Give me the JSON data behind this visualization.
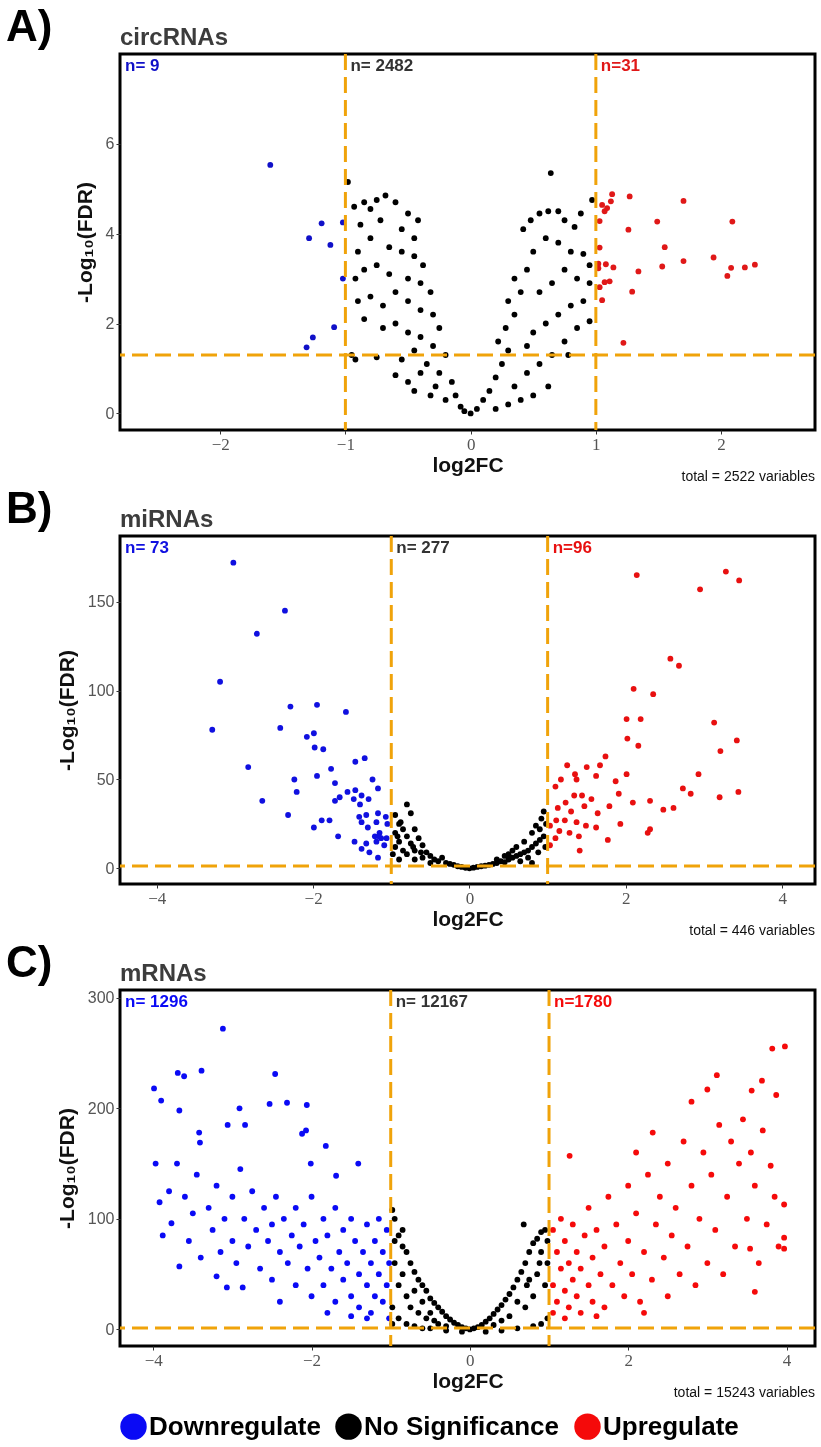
{
  "chart_data": [
    {
      "type": "scatter",
      "title": "circRNAs",
      "xlabel": "log2FC",
      "ylabel": "-Log₁₀(FDR)",
      "xlim": [
        -2.8,
        2.75
      ],
      "ylim": [
        -0.37,
        8
      ],
      "xticks": [
        -2,
        -1,
        0,
        1,
        2
      ],
      "yticks": [
        0,
        2,
        4,
        6
      ],
      "marker": "circle",
      "legend": false,
      "annotations": [
        "A)",
        "n= 9",
        "n= 2482",
        "n=31",
        "total = 2522 variables"
      ],
      "ref_lines": [
        {
          "axis": "x",
          "value": -1,
          "color": "#f0a30a",
          "line_style": "dashed"
        },
        {
          "axis": "x",
          "value": 1,
          "color": "#f0a30a",
          "line_style": "dashed"
        },
        {
          "axis": "y",
          "value": 1.3,
          "color": "#f0a30a",
          "line_style": "dashed"
        }
      ],
      "series": [
        {
          "color": "#1010c8",
          "x": [
            -1.6,
            -1.19,
            -1.02,
            -1.29,
            -1.12,
            -1.02,
            -1.09,
            -1.26,
            -1.31
          ],
          "values": [
            5.53,
            4.23,
            4.25,
            3.9,
            3.75,
            3.0,
            1.92,
            1.69,
            1.47
          ]
        },
        {
          "color": "#000000",
          "x": [
            -0.98,
            -0.93,
            -0.85,
            -0.8,
            -0.75,
            -0.68,
            -0.6,
            -0.5,
            -0.42,
            -0.88,
            -0.72,
            -0.55,
            -0.45,
            -0.9,
            -0.8,
            -0.65,
            -0.55,
            -0.45,
            -0.38,
            -0.92,
            -0.85,
            -0.75,
            -0.65,
            -0.5,
            -0.4,
            -0.32,
            -0.9,
            -0.8,
            -0.7,
            -0.6,
            -0.5,
            -0.4,
            -0.3,
            -0.25,
            -0.85,
            -0.7,
            -0.6,
            -0.5,
            -0.4,
            -0.3,
            -0.2,
            -0.95,
            -0.92,
            -0.75,
            -0.55,
            -0.45,
            -0.35,
            -0.25,
            -0.15,
            -0.6,
            -0.5,
            -0.45,
            -0.4,
            -0.32,
            -0.28,
            -0.2,
            -0.12,
            -0.08,
            -0.05,
            0,
            0.05,
            0.1,
            0.15,
            0.2,
            0.25,
            0.3,
            0.22,
            0.28,
            0.35,
            0.3,
            0.4,
            0.35,
            0.45,
            0.5,
            0.42,
            0.48,
            0.55,
            0.62,
            0.7,
            0.75,
            0.83,
            0.88,
            0.64,
            0.97,
            0.6,
            0.7,
            0.8,
            0.9,
            0.95,
            0.85,
            0.75,
            0.65,
            0.55,
            0.95,
            0.9,
            0.8,
            0.7,
            0.6,
            0.5,
            0.45,
            0.95,
            0.85,
            0.75,
            0.65,
            0.55,
            0.45,
            0.35,
            0.62,
            0.5,
            0.4,
            0.3,
            0.2,
            0.78
          ],
          "values": [
            5.15,
            4.6,
            4.7,
            4.55,
            4.75,
            4.85,
            4.7,
            4.45,
            4.3,
            4.2,
            4.3,
            4.1,
            3.9,
            3.6,
            3.9,
            3.7,
            3.6,
            3.5,
            3.3,
            3.0,
            3.2,
            3.3,
            3.1,
            3.0,
            2.9,
            2.7,
            2.5,
            2.6,
            2.4,
            2.7,
            2.5,
            2.3,
            2.2,
            1.9,
            2.1,
            1.9,
            2.0,
            1.8,
            1.7,
            1.5,
            1.3,
            1.3,
            1.2,
            1.25,
            1.2,
            1.4,
            1.1,
            0.9,
            0.7,
            0.85,
            0.7,
            0.5,
            0.9,
            0.4,
            0.6,
            0.3,
            0.4,
            0.15,
            0.05,
            0,
            0.1,
            0.3,
            0.5,
            0.8,
            1.1,
            1.4,
            1.6,
            1.9,
            2.2,
            2.5,
            2.7,
            3.0,
            3.2,
            3.6,
            4.1,
            4.3,
            4.45,
            4.5,
            4.5,
            4.3,
            4.15,
            4.45,
            5.35,
            4.75,
            3.9,
            3.8,
            3.6,
            3.55,
            3.3,
            3.0,
            3.2,
            2.9,
            2.7,
            2.9,
            2.5,
            2.4,
            2.2,
            2.0,
            1.8,
            1.5,
            2.05,
            1.9,
            1.6,
            1.3,
            1.1,
            0.9,
            0.6,
            0.6,
            0.4,
            0.3,
            0.2,
            0.1,
            1.3
          ]
        },
        {
          "color": "#e01818",
          "x": [
            1.05,
            1.13,
            1.27,
            1.12,
            1.07,
            1.03,
            1.26,
            1.49,
            1.7,
            2.09,
            1.55,
            1.03,
            1.7,
            1.94,
            1.53,
            1.08,
            1.02,
            1.14,
            1.34,
            2.08,
            2.19,
            2.27,
            2.05,
            1.07,
            1.03,
            1.29,
            1.05,
            1.22,
            1.09,
            1.11,
            1.02
          ],
          "values": [
            4.64,
            4.88,
            4.83,
            4.72,
            4.5,
            4.28,
            4.09,
            4.27,
            4.73,
            4.27,
            3.7,
            3.69,
            3.39,
            3.47,
            3.27,
            3.32,
            3.23,
            3.25,
            3.16,
            3.24,
            3.25,
            3.31,
            3.06,
            2.92,
            2.81,
            2.71,
            2.52,
            1.57,
            4.57,
            2.94,
            3.33
          ]
        }
      ]
    },
    {
      "type": "scatter",
      "title": "miRNAs",
      "xlabel": "log2FC",
      "ylabel": "-Log₁₀(FDR)",
      "xlim": [
        -4.47,
        4.42
      ],
      "ylim": [
        -8.8,
        187
      ],
      "xticks": [
        -4,
        -2,
        0,
        2,
        4
      ],
      "yticks": [
        0,
        50,
        100,
        150
      ],
      "marker": "circle",
      "legend": false,
      "annotations": [
        "B)",
        "n= 73",
        "n= 277",
        "n=96",
        "total = 446 variables"
      ],
      "ref_lines": [
        {
          "axis": "x",
          "value": -1,
          "color": "#f0a30a",
          "line_style": "dashed"
        },
        {
          "axis": "x",
          "value": 1,
          "color": "#f0a30a",
          "line_style": "dashed"
        },
        {
          "axis": "y",
          "value": 1.3,
          "color": "#f0a30a",
          "line_style": "dashed"
        }
      ],
      "series": [
        {
          "color": "#1010e0",
          "x": [
            -3.02,
            -2.36,
            -2.72,
            -3.19,
            -3.29,
            -2.29,
            -1.95,
            -1.58,
            -2.42,
            -2.08,
            -1.99,
            -1.98,
            -1.87,
            -2.83,
            -1.77,
            -1.72,
            -2.24,
            -1.95,
            -2.21,
            -2.65,
            -2.32,
            -1.99,
            -1.89,
            -1.68,
            -1.79,
            -1.46,
            -1.34,
            -1.24,
            -1.17,
            -1.56,
            -1.46,
            -1.38,
            -1.48,
            -1.66,
            -1.72,
            -1.4,
            -1.29,
            -1.41,
            -1.32,
            -1.17,
            -1.07,
            -1.19,
            -1.3,
            -1.38,
            -1.05,
            -1.15,
            -1.21,
            -1.13,
            -1.19,
            -1.32,
            -1.47,
            -1.38,
            -1.28,
            -1.17,
            -1.09,
            -1.06,
            -1.16
          ],
          "values": [
            172,
            145,
            132,
            105,
            78,
            91,
            92,
            88,
            79,
            74,
            76,
            68,
            67,
            57,
            56,
            48,
            50,
            52,
            43,
            38,
            30,
            23,
            27,
            18,
            27,
            60,
            62,
            50,
            45,
            43,
            44,
            41,
            39,
            40,
            38,
            36,
            39,
            29,
            30,
            31,
            29,
            26,
            23,
            26,
            25,
            20,
            18,
            17,
            15,
            14,
            15,
            11,
            9,
            6,
            13,
            17,
            18
          ]
        },
        {
          "color": "#000000",
          "x": [
            -0.8,
            -0.75,
            -0.95,
            -0.9,
            -0.85,
            -0.7,
            -0.95,
            -0.8,
            -0.65,
            -0.9,
            -0.75,
            -0.6,
            -0.95,
            -0.85,
            -0.7,
            -0.55,
            -0.9,
            -0.5,
            -0.45,
            -0.6,
            -0.4,
            -0.35,
            -0.3,
            -0.25,
            -0.2,
            -0.15,
            -0.1,
            -0.05,
            0,
            -0.5,
            -0.7,
            -0.8,
            -0.98,
            -0.92,
            -0.72,
            -0.88,
            -0.62,
            0.05,
            0.1,
            0.15,
            0.2,
            0.25,
            0.3,
            0.35,
            0.4,
            0.45,
            0.5,
            0.55,
            0.6,
            0.65,
            0.7,
            0.75,
            0.8,
            0.85,
            0.9,
            0.95,
            0.9,
            0.85,
            0.92,
            0.95,
            0.98,
            0.8,
            0.7,
            0.6,
            0.55,
            0.5,
            0.65,
            0.75,
            0.88,
            0.97,
            0.45,
            0.35,
            0.8
          ],
          "values": [
            36,
            31,
            30,
            25,
            22,
            22,
            20,
            18,
            17,
            15,
            14,
            13,
            12,
            10,
            10,
            9,
            5,
            7,
            5,
            6,
            4,
            6,
            3,
            2.5,
            2,
            1.2,
            0.8,
            0.3,
            0,
            3,
            5,
            8,
            8,
            18,
            12,
            26,
            9,
            0.4,
            0.8,
            1.2,
            1.5,
            2,
            2.5,
            3,
            4,
            3.5,
            5,
            6,
            7,
            8,
            9,
            10,
            12,
            14,
            16,
            18,
            22,
            24,
            28,
            32,
            25,
            20,
            15,
            12,
            10,
            8,
            4,
            6,
            9,
            12,
            7,
            5,
            3
          ]
        },
        {
          "color": "#e81010",
          "x": [
            2.14,
            3.28,
            3.45,
            2.95,
            2.57,
            2.68,
            2.1,
            2.35,
            2.01,
            2.19,
            3.13,
            2.02,
            2.16,
            3.42,
            3.21,
            1.74,
            1.67,
            1.25,
            1.5,
            1.35,
            1.62,
            2.01,
            2.93,
            1.87,
            1.37,
            1.17,
            1.1,
            2.73,
            2.83,
            3.44,
            3.2,
            1.91,
            1.79,
            2.09,
            2.31,
            2.48,
            2.61,
            1.34,
            1.44,
            1.56,
            1.23,
            1.13,
            1.47,
            1.3,
            1.64,
            1.11,
            1.22,
            1.37,
            1.49,
            1.03,
            1.15,
            1.28,
            1.1,
            1.4,
            1.62,
            1.77,
            1.93,
            1.03,
            1.41,
            2.28,
            2.31
          ],
          "values": [
            165,
            167,
            162,
            157,
            118,
            114,
            101,
            98,
            84,
            84,
            82,
            73,
            69,
            72,
            66,
            63,
            58,
            58,
            57,
            53,
            52,
            53,
            53,
            49,
            50,
            50,
            46,
            45,
            42,
            43,
            40,
            42,
            35,
            37,
            38,
            33,
            34,
            41,
            41,
            39,
            37,
            34,
            35,
            32,
            31,
            27,
            27,
            26,
            24,
            24,
            21,
            20,
            17,
            18,
            23,
            16,
            25,
            13,
            10,
            20,
            22
          ]
        }
      ]
    },
    {
      "type": "scatter",
      "title": "mRNAs",
      "xlabel": "log2FC",
      "ylabel": "-Log₁₀(FDR)",
      "xlim": [
        -4.42,
        4.36
      ],
      "ylim": [
        -15,
        307
      ],
      "xticks": [
        -4,
        -2,
        0,
        2,
        4
      ],
      "yticks": [
        0,
        100,
        200,
        300
      ],
      "marker": "circle",
      "legend": "bottom",
      "annotations": [
        "C)",
        "n= 1296",
        "n= 12167",
        "n=1780",
        "total = 15243 variables"
      ],
      "ref_lines": [
        {
          "axis": "x",
          "value": -1,
          "color": "#f0a30a",
          "line_style": "dashed"
        },
        {
          "axis": "x",
          "value": 1,
          "color": "#f0a30a",
          "line_style": "dashed"
        },
        {
          "axis": "y",
          "value": 1.3,
          "color": "#f0a30a",
          "line_style": "dashed"
        }
      ],
      "series": [
        {
          "name": "Downregulate",
          "color": "#0a0af5",
          "x": [
            -3.12,
            -3.99,
            -3.9,
            -3.69,
            -3.61,
            -3.39,
            -2.46,
            -2.53,
            -2.31,
            -2.06,
            -3.67,
            -3.97,
            -3.92,
            -3.88,
            -3.77,
            -2.91,
            -3.06,
            -2.84,
            -3.42,
            -3.41,
            -2.07,
            -2.12,
            -1.82,
            -2.01,
            -1.41,
            -1.69,
            -3.67,
            -3.2,
            -3.07,
            -2.87,
            -3.6,
            -3.5,
            -3.45,
            -3.3,
            -3.25,
            -3.2,
            -3.15,
            -3.1,
            -3.0,
            -3.0,
            -2.95,
            -2.9,
            -2.85,
            -2.8,
            -2.75,
            -2.7,
            -2.65,
            -2.6,
            -2.55,
            -2.5,
            -2.5,
            -2.45,
            -2.4,
            -2.35,
            -2.3,
            -2.25,
            -2.2,
            -2.2,
            -2.15,
            -2.1,
            -2.05,
            -2.0,
            -2.0,
            -1.95,
            -1.9,
            -1.85,
            -1.85,
            -1.8,
            -1.75,
            -1.7,
            -1.7,
            -1.65,
            -1.6,
            -1.6,
            -1.55,
            -1.5,
            -1.5,
            -1.45,
            -1.4,
            -1.4,
            -1.35,
            -1.3,
            -1.3,
            -1.25,
            -1.25,
            -1.2,
            -1.2,
            -1.15,
            -1.15,
            -1.1,
            -1.1,
            -1.05,
            -1.05,
            -1.02,
            -1.02,
            -1.3,
            -1.5,
            -1.8,
            -2.4,
            -3.4,
            -3.55,
            -3.7,
            -3.8
          ],
          "values": [
            272,
            218,
            207,
            232,
            229,
            234,
            231,
            204,
            205,
            203,
            198,
            150,
            115,
            85,
            96,
            200,
            185,
            185,
            178,
            169,
            180,
            177,
            166,
            150,
            150,
            139,
            57,
            48,
            38,
            38,
            120,
            105,
            140,
            110,
            90,
            130,
            70,
            100,
            120,
            80,
            60,
            145,
            100,
            75,
            125,
            90,
            55,
            110,
            80,
            95,
            45,
            120,
            70,
            100,
            60,
            85,
            40,
            110,
            75,
            95,
            55,
            120,
            30,
            80,
            65,
            100,
            40,
            85,
            55,
            110,
            25,
            70,
            90,
            45,
            60,
            100,
            30,
            80,
            50,
            20,
            70,
            95,
            40,
            60,
            15,
            80,
            30,
            50,
            100,
            70,
            25,
            90,
            40,
            60,
            10,
            10,
            12,
            15,
            25,
            65,
            80,
            150,
            125
          ]
        },
        {
          "name": "No Significance",
          "color": "#000000",
          "x": [
            -0.98,
            -0.95,
            -0.9,
            -0.85,
            -0.8,
            -0.75,
            -0.7,
            -0.65,
            -0.6,
            -0.55,
            -0.5,
            -0.45,
            -0.4,
            -0.35,
            -0.3,
            -0.25,
            -0.2,
            -0.15,
            -0.1,
            -0.05,
            0,
            -0.95,
            -0.9,
            -0.85,
            -0.8,
            -0.75,
            -0.7,
            -0.65,
            -0.6,
            -0.55,
            -0.5,
            -0.45,
            -0.4,
            -0.3,
            -0.98,
            -0.98,
            -0.9,
            -0.8,
            -0.7,
            -0.6,
            -0.5,
            -0.3,
            -0.1,
            -0.95,
            -0.85,
            0.05,
            0.1,
            0.15,
            0.2,
            0.25,
            0.3,
            0.35,
            0.4,
            0.45,
            0.5,
            0.55,
            0.6,
            0.65,
            0.7,
            0.68,
            0.75,
            0.8,
            0.85,
            0.9,
            0.95,
            0.98,
            0.95,
            0.9,
            0.85,
            0.8,
            0.75,
            0.7,
            0.6,
            0.5,
            0.4,
            0.3,
            0.98,
            0.9,
            0.8,
            0.6,
            0.4,
            0.2,
            0.98,
            0.88,
            0.72
          ],
          "values": [
            108,
            100,
            85,
            75,
            70,
            60,
            52,
            45,
            40,
            35,
            28,
            24,
            20,
            16,
            12,
            9,
            6,
            4,
            2,
            1,
            0,
            60,
            40,
            50,
            30,
            20,
            35,
            15,
            25,
            10,
            15,
            8,
            5,
            3,
            20,
            5,
            10,
            5,
            3,
            1,
            1,
            -1,
            -2,
            80,
            90,
            1,
            2,
            4,
            7,
            10,
            14,
            18,
            22,
            27,
            32,
            38,
            45,
            52,
            60,
            95,
            70,
            78,
            82,
            88,
            90,
            60,
            40,
            70,
            50,
            30,
            45,
            20,
            25,
            12,
            8,
            4,
            10,
            5,
            3,
            1,
            -1,
            -2,
            80,
            60,
            40
          ]
        },
        {
          "name": "Upregulate",
          "color": "#f50a0a",
          "x": [
            3.82,
            3.98,
            3.12,
            3.69,
            3.56,
            3.0,
            2.8,
            3.87,
            3.8,
            3.97,
            3.97,
            3.97,
            3.54,
            3.6,
            1.26,
            2.1,
            2.31,
            1.05,
            1.05,
            1.05,
            1.1,
            1.1,
            1.15,
            1.15,
            1.2,
            1.2,
            1.25,
            1.25,
            1.3,
            1.3,
            1.35,
            1.35,
            1.4,
            1.4,
            1.45,
            1.5,
            1.5,
            1.55,
            1.55,
            1.6,
            1.65,
            1.7,
            1.7,
            1.75,
            1.8,
            1.85,
            1.9,
            1.95,
            2.0,
            2.0,
            2.05,
            2.1,
            2.15,
            2.2,
            2.25,
            2.3,
            2.35,
            2.4,
            2.45,
            2.5,
            2.5,
            2.55,
            2.6,
            2.65,
            2.7,
            2.75,
            2.8,
            2.85,
            2.9,
            2.95,
            3.0,
            3.05,
            3.1,
            3.15,
            3.2,
            3.25,
            3.3,
            3.35,
            3.4,
            3.45,
            3.5,
            3.55,
            3.6,
            3.65,
            3.7,
            3.75,
            3.85,
            3.9,
            1.2,
            1.6,
            2.2
          ],
          "values": [
            254,
            256,
            230,
            225,
            216,
            217,
            206,
            212,
            148,
            113,
            83,
            73,
            73,
            34,
            157,
            160,
            178,
            90,
            40,
            15,
            70,
            25,
            55,
            100,
            35,
            80,
            20,
            60,
            45,
            95,
            30,
            70,
            15,
            55,
            85,
            40,
            110,
            25,
            65,
            90,
            50,
            20,
            75,
            120,
            40,
            95,
            60,
            30,
            80,
            130,
            50,
            105,
            25,
            70,
            140,
            45,
            95,
            120,
            65,
            150,
            30,
            85,
            110,
            50,
            170,
            75,
            130,
            40,
            100,
            160,
            60,
            140,
            90,
            185,
            50,
            120,
            170,
            75,
            150,
            190,
            100,
            160,
            130,
            60,
            180,
            95,
            120,
            75,
            10,
            12,
            15
          ]
        }
      ]
    }
  ]
}
